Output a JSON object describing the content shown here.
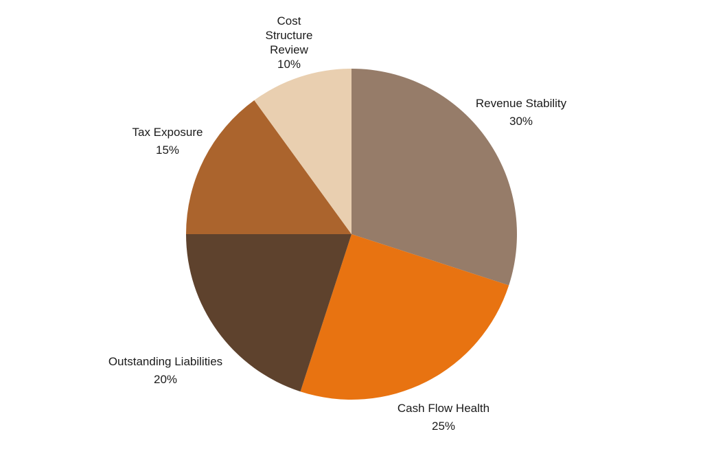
{
  "chart_data": {
    "type": "pie",
    "title": "",
    "start_angle_deg": 0,
    "direction": "clockwise",
    "slices": [
      {
        "label": "Revenue Stability",
        "value": 30,
        "percent_label": "30%",
        "color": "#967C69"
      },
      {
        "label": "Cash Flow Health",
        "value": 25,
        "percent_label": "25%",
        "color": "#E87311"
      },
      {
        "label": "Outstanding Liabilities",
        "value": 20,
        "percent_label": "20%",
        "color": "#5E422D"
      },
      {
        "label": "Tax Exposure",
        "value": 15,
        "percent_label": "15%",
        "color": "#AB642D"
      },
      {
        "label": "Cost Structure Review",
        "value": 10,
        "percent_label": "10%",
        "color": "#E9CFB0"
      }
    ]
  }
}
